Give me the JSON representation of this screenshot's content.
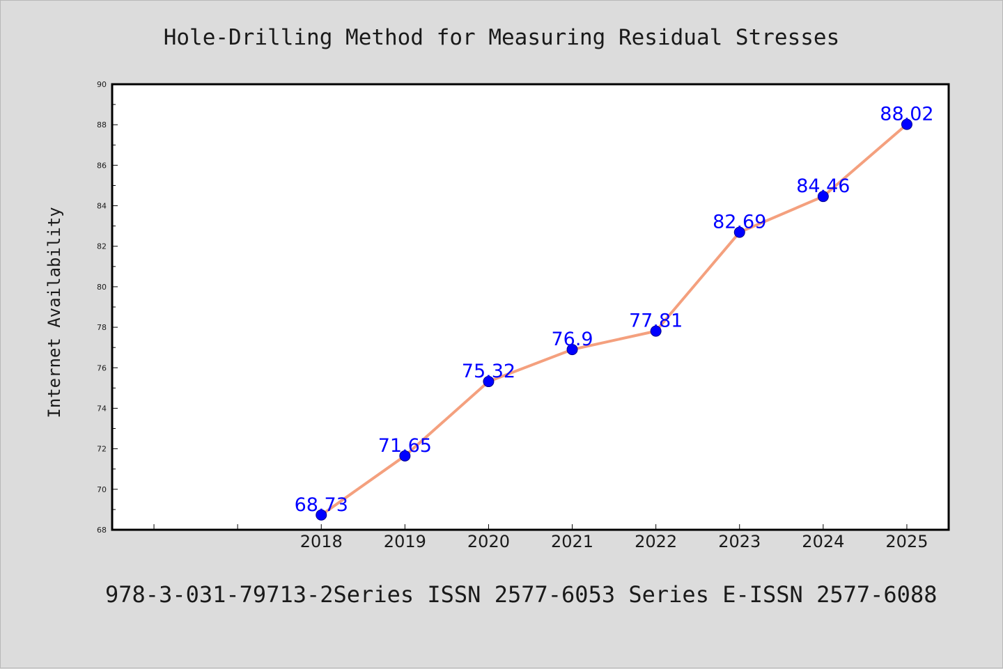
{
  "chart_data": {
    "type": "line",
    "title": "Hole-Drilling Method for Measuring Residual Stresses",
    "xlabel": "",
    "ylabel": "Internet Availability",
    "x": [
      "2018",
      "2019",
      "2020",
      "2021",
      "2022",
      "2023",
      "2024",
      "2025"
    ],
    "data_labels": [
      "68.73",
      "71.65",
      "75.32",
      "76.9",
      "77.81",
      "82.69",
      "84.46",
      "88.02"
    ],
    "series": [
      {
        "values": [
          68.73,
          71.65,
          75.32,
          76.9,
          77.81,
          82.69,
          84.46,
          88.02
        ],
        "line_color": "#f4a07e",
        "marker_color": "#0000ff"
      }
    ],
    "ylim": [
      68,
      90
    ],
    "yticks": [
      "68",
      "70",
      "72",
      "74",
      "76",
      "78",
      "80",
      "82",
      "84",
      "86",
      "88",
      "90"
    ],
    "xlim": [
      "2015.5",
      "2025.5"
    ],
    "grid": false,
    "legend": false
  },
  "footer": "978-3-031-79713-2Series ISSN 2577-6053 Series E-ISSN 2577-6088",
  "colors": {
    "background": "#dcdcdc",
    "plot_background": "#ffffff",
    "axis": "#000000",
    "data_label": "#0000ff"
  }
}
